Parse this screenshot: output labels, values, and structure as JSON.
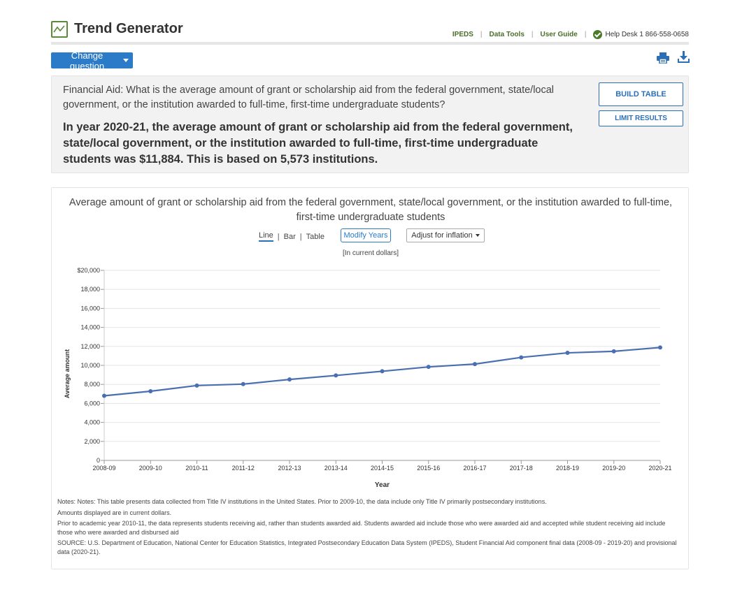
{
  "header": {
    "title": "Trend Generator",
    "nav": [
      "IPEDS",
      "Data Tools",
      "User Guide"
    ],
    "help": "Help Desk 1 866-558-0658"
  },
  "toolbar": {
    "change_question": "Change question",
    "print_icon": "print-icon",
    "download_icon": "download-icon"
  },
  "question": {
    "text": "Financial Aid: What is the average amount of grant or scholarship aid from the federal government, state/local government, or the institution awarded to full-time, first-time undergraduate students?",
    "answer": "In year 2020-21, the average amount of grant or scholarship aid from the federal government, state/local government, or the institution awarded to full-time, first-time undergraduate students was $11,884. This is based on 5,573 institutions.",
    "build_table": "BUILD TABLE",
    "limit_results": "LIMIT RESULTS"
  },
  "chart_panel": {
    "title": "Average amount of grant or scholarship aid from the federal government, state/local government, or the institution awarded to full-time, first-time undergraduate students",
    "views": [
      "Line",
      "Bar",
      "Table"
    ],
    "modify_years": "Modify Years",
    "adjust_inflation": "Adjust for inflation",
    "subtitle": "[In current dollars]"
  },
  "chart_data": {
    "type": "line",
    "categories": [
      "2008-09",
      "2009-10",
      "2010-11",
      "2011-12",
      "2012-13",
      "2013-14",
      "2014-15",
      "2015-16",
      "2016-17",
      "2017-18",
      "2018-19",
      "2019-20",
      "2020-21"
    ],
    "series": [
      {
        "values": [
          6800,
          7280,
          7880,
          8030,
          8520,
          8940,
          9380,
          9840,
          10140,
          10840,
          11320,
          11480,
          11884
        ],
        "color": "#4a6fb0"
      }
    ],
    "xlabel": "Year",
    "ylabel": "Average amount",
    "ylim": [
      0,
      20000
    ],
    "yticks": [
      0,
      2000,
      4000,
      6000,
      8000,
      10000,
      12000,
      14000,
      16000,
      18000,
      20000
    ],
    "ytick_labels": [
      "0",
      "2,000",
      "4,000",
      "6,000",
      "8,000",
      "10,000",
      "12,000",
      "14,000",
      "16,000",
      "18,000",
      "$20,000"
    ],
    "grid": true
  },
  "notes": [
    "Notes: Notes: This table presents data collected from Title IV institutions in the United States. Prior to 2009-10, the data include only Title IV primarily postsecondary institutions.",
    "Amounts displayed are in current dollars.",
    "Prior to academic year 2010-11, the data represents students receiving aid, rather than students awarded aid. Students awarded aid include those who were awarded aid and accepted while student receiving aid include those who were awarded and disbursed aid",
    "SOURCE: U.S. Department of Education, National Center for Education Statistics, Integrated Postsecondary Education Data System (IPEDS), Student Financial Aid component final data (2008-09 - 2019-20) and provisional data (2020-21)."
  ]
}
